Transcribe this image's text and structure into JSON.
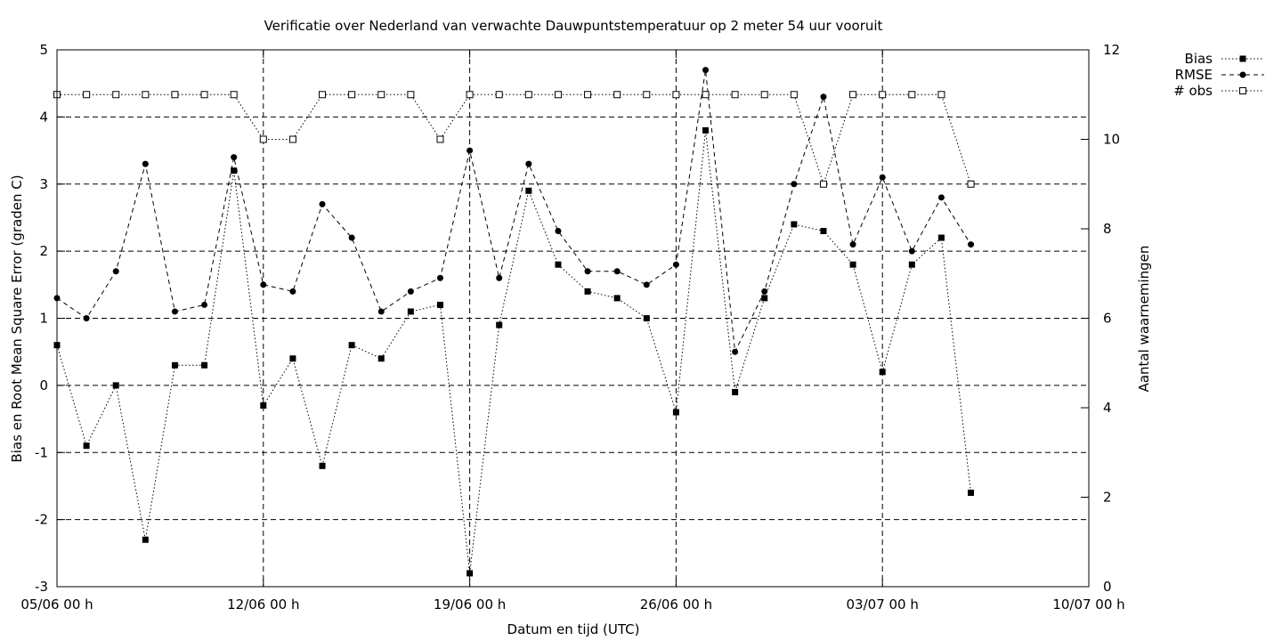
{
  "chart_data": {
    "type": "line",
    "title": "Verificatie over Nederland van verwachte Dauwpuntstemperatuur op 2 meter 54 uur vooruit",
    "xlabel": "Datum en tijd (UTC)",
    "ylabel": "Bias en Root Mean Square Error (graden C)",
    "y2label": "Aantal waarnemingen",
    "xlim": [
      "2024-06-05",
      "2024-07-10"
    ],
    "xticks": [
      {
        "date": "2024-06-05",
        "label": "05/06 00 h"
      },
      {
        "date": "2024-06-12",
        "label": "12/06 00 h"
      },
      {
        "date": "2024-06-19",
        "label": "19/06 00 h"
      },
      {
        "date": "2024-06-26",
        "label": "26/06 00 h"
      },
      {
        "date": "2024-07-03",
        "label": "03/07 00 h"
      },
      {
        "date": "2024-07-10",
        "label": "10/07 00 h"
      }
    ],
    "ylim": [
      -3,
      5
    ],
    "yticks": [
      -3,
      -2,
      -1,
      0,
      1,
      2,
      3,
      4,
      5
    ],
    "y2lim": [
      0,
      12
    ],
    "y2ticks": [
      0,
      2,
      4,
      6,
      8,
      10,
      12
    ],
    "grid": true,
    "legend_position": "top-right outside",
    "x": [
      "2024-06-05",
      "2024-06-06",
      "2024-06-07",
      "2024-06-08",
      "2024-06-09",
      "2024-06-10",
      "2024-06-11",
      "2024-06-12",
      "2024-06-13",
      "2024-06-14",
      "2024-06-15",
      "2024-06-16",
      "2024-06-17",
      "2024-06-18",
      "2024-06-19",
      "2024-06-20",
      "2024-06-21",
      "2024-06-22",
      "2024-06-23",
      "2024-06-24",
      "2024-06-25",
      "2024-06-26",
      "2024-06-27",
      "2024-06-28",
      "2024-06-29",
      "2024-06-30",
      "2024-07-01",
      "2024-07-02",
      "2024-07-03",
      "2024-07-04",
      "2024-07-05",
      "2024-07-06"
    ],
    "series": [
      {
        "name": "Bias",
        "axis": "y",
        "marker": "filled-square",
        "dash": "dotted",
        "values": [
          0.6,
          -0.9,
          0.0,
          -2.3,
          0.3,
          0.3,
          3.2,
          -0.3,
          0.4,
          -1.2,
          0.6,
          0.4,
          1.1,
          1.2,
          -2.8,
          0.9,
          2.9,
          1.8,
          1.4,
          1.3,
          1.0,
          -0.4,
          3.8,
          -0.1,
          1.3,
          2.4,
          2.3,
          1.8,
          0.2,
          1.8,
          2.2,
          -1.6
        ]
      },
      {
        "name": "RMSE",
        "axis": "y",
        "marker": "filled-circle",
        "dash": "dashed",
        "values": [
          1.3,
          1.0,
          1.7,
          3.3,
          1.1,
          1.2,
          3.4,
          1.5,
          1.4,
          2.7,
          2.2,
          1.1,
          1.4,
          1.6,
          3.5,
          1.6,
          3.3,
          2.3,
          1.7,
          1.7,
          1.5,
          1.8,
          4.7,
          0.5,
          1.4,
          3.0,
          4.3,
          2.1,
          3.1,
          2.0,
          2.8,
          2.1
        ]
      },
      {
        "name": "# obs",
        "axis": "y2",
        "marker": "open-square",
        "dash": "dotted",
        "values": [
          11,
          11,
          11,
          11,
          11,
          11,
          11,
          10,
          10,
          11,
          11,
          11,
          11,
          10,
          11,
          11,
          11,
          11,
          11,
          11,
          11,
          11,
          11,
          11,
          11,
          11,
          9,
          11,
          11,
          11,
          11,
          9
        ]
      }
    ]
  }
}
